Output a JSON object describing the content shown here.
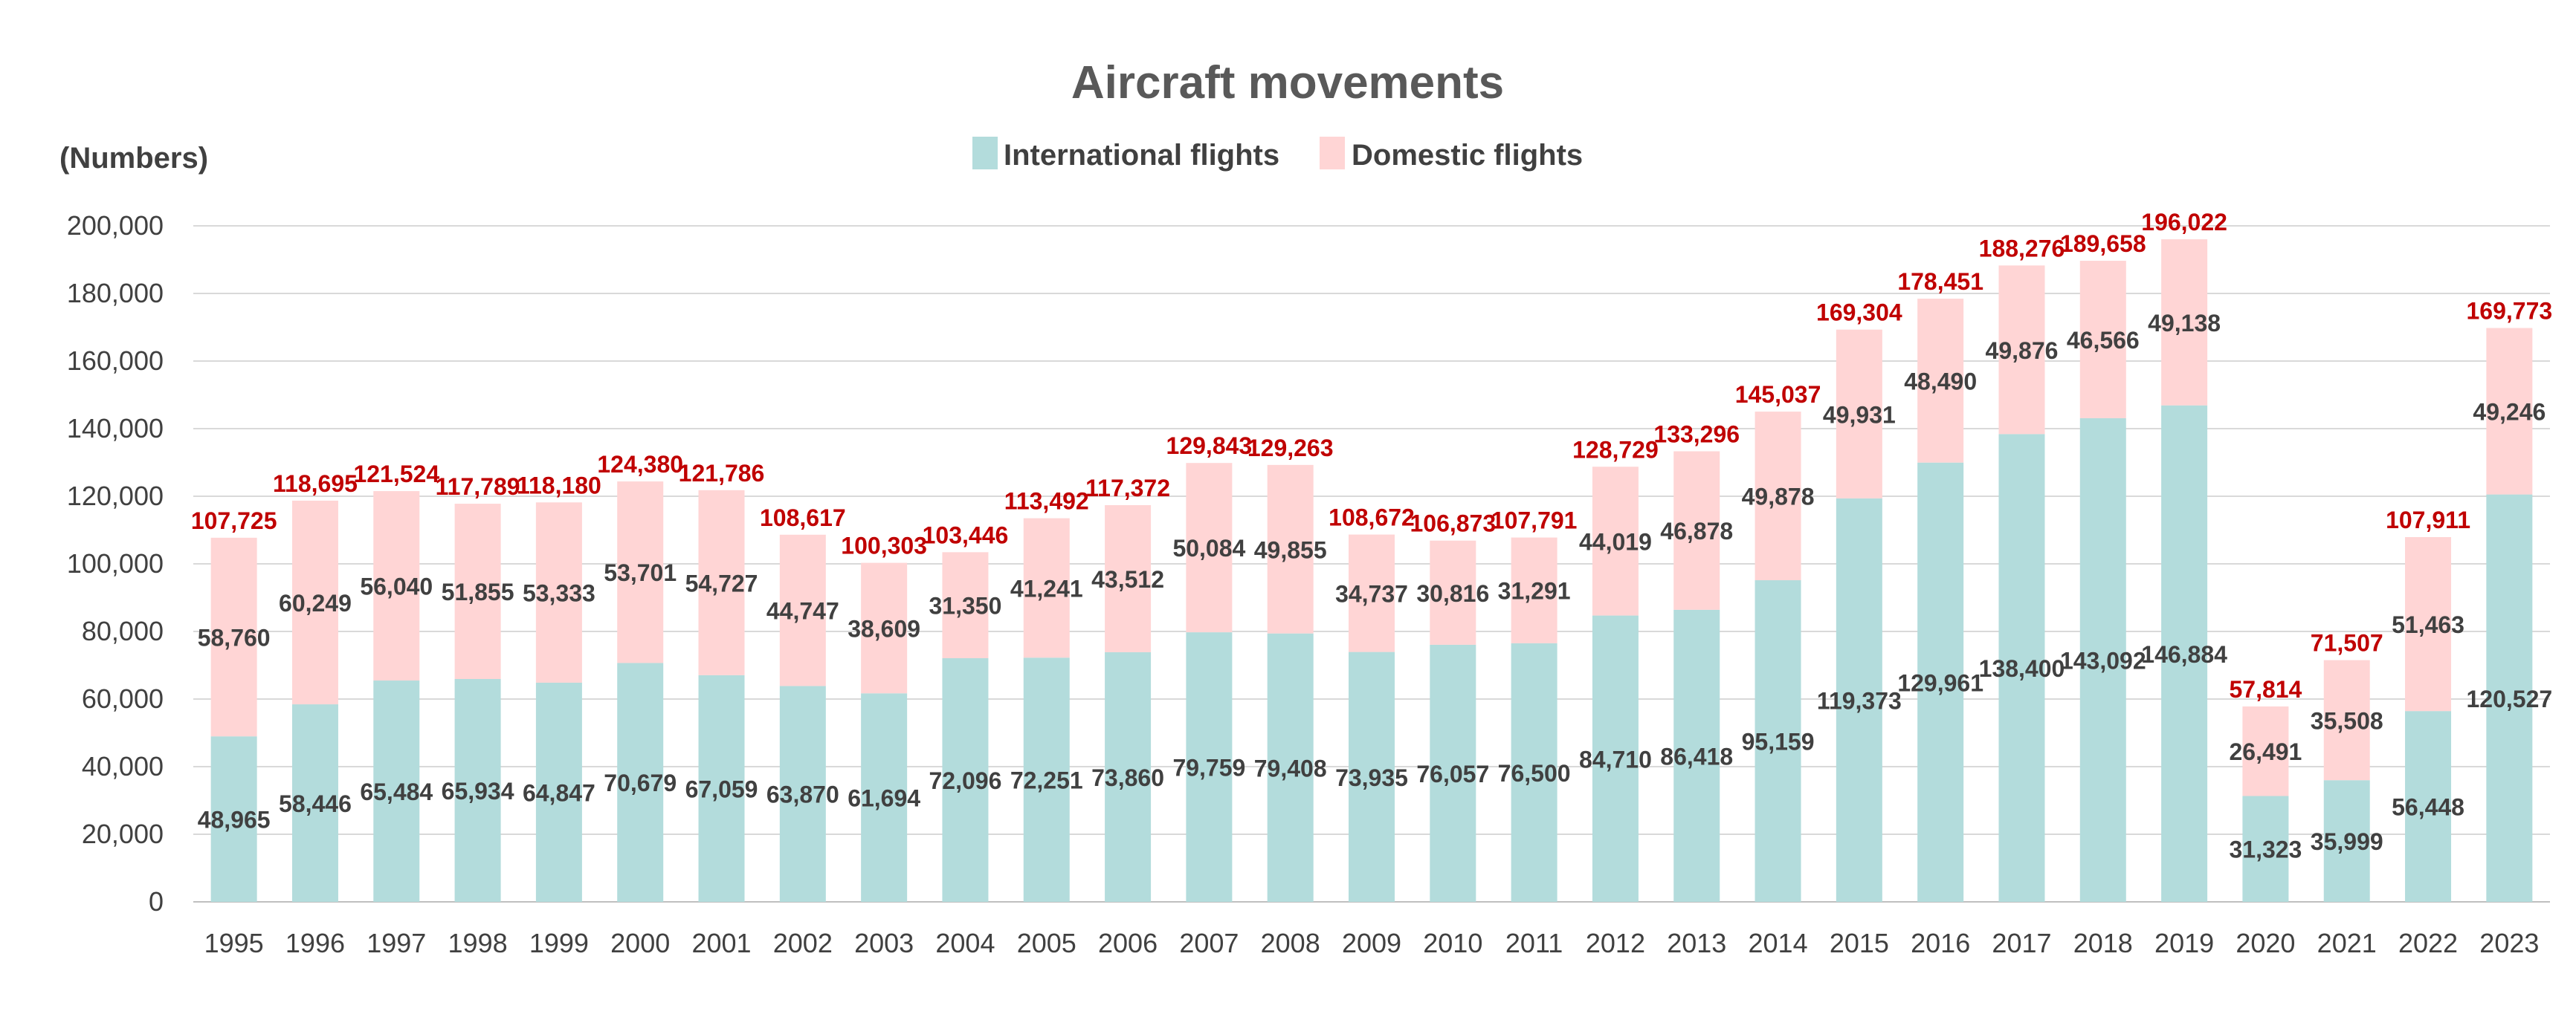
{
  "chart_data": {
    "type": "bar",
    "stacked": true,
    "title": "Aircraft movements",
    "ylabel": "(Numbers)",
    "xlabel": "",
    "ylim": [
      0,
      200000
    ],
    "yticks": [
      0,
      20000,
      40000,
      60000,
      80000,
      100000,
      120000,
      140000,
      160000,
      180000,
      200000
    ],
    "ytick_labels": [
      "0",
      "20,000",
      "40,000",
      "60,000",
      "80,000",
      "100,000",
      "120,000",
      "140,000",
      "160,000",
      "180,000",
      "200,000"
    ],
    "grid": true,
    "legend_position": "top-center",
    "categories": [
      "1995",
      "1996",
      "1997",
      "1998",
      "1999",
      "2000",
      "2001",
      "2002",
      "2003",
      "2004",
      "2005",
      "2006",
      "2007",
      "2008",
      "2009",
      "2010",
      "2011",
      "2012",
      "2013",
      "2014",
      "2015",
      "2016",
      "2017",
      "2018",
      "2019",
      "2020",
      "2021",
      "2022",
      "2023"
    ],
    "series": [
      {
        "name": "International flights",
        "color": "#b3dcdc",
        "values": [
          48965,
          58446,
          65484,
          65934,
          64847,
          70679,
          67059,
          63870,
          61694,
          72096,
          72251,
          73860,
          79759,
          79408,
          73935,
          76057,
          76500,
          84710,
          86418,
          95159,
          119373,
          129961,
          138400,
          143092,
          146884,
          31323,
          35999,
          56448,
          120527
        ],
        "labels": [
          "48,965",
          "58,446",
          "65,484",
          "65,934",
          "64,847",
          "70,679",
          "67,059",
          "63,870",
          "61,694",
          "72,096",
          "72,251",
          "73,860",
          "79,759",
          "79,408",
          "73,935",
          "76,057",
          "76,500",
          "84,710",
          "86,418",
          "95,159",
          "119,373",
          "129,961",
          "138,400",
          "143,092",
          "146,884",
          "31,323",
          "35,999",
          "56,448",
          "120,527"
        ]
      },
      {
        "name": "Domestic flights",
        "color": "#ffd5d5",
        "values": [
          58760,
          60249,
          56040,
          51855,
          53333,
          53701,
          54727,
          44747,
          38609,
          31350,
          41241,
          43512,
          50084,
          49855,
          34737,
          30816,
          31291,
          44019,
          46878,
          49878,
          49931,
          48490,
          49876,
          46566,
          49138,
          26491,
          35508,
          51463,
          49246
        ],
        "labels": [
          "58,760",
          "60,249",
          "56,040",
          "51,855",
          "53,333",
          "53,701",
          "54,727",
          "44,747",
          "38,609",
          "31,350",
          "41,241",
          "43,512",
          "50,084",
          "49,855",
          "34,737",
          "30,816",
          "31,291",
          "44,019",
          "46,878",
          "49,878",
          "49,931",
          "48,490",
          "49,876",
          "46,566",
          "49,138",
          "26,491",
          "35,508",
          "51,463",
          "49,246"
        ]
      }
    ],
    "totals": [
      107725,
      118695,
      121524,
      117789,
      118180,
      124380,
      121786,
      108617,
      100303,
      103446,
      113492,
      117372,
      129843,
      129263,
      108672,
      106873,
      107791,
      128729,
      133296,
      145037,
      169304,
      178451,
      188276,
      189658,
      196022,
      57814,
      71507,
      107911,
      169773
    ],
    "total_labels": [
      "107,725",
      "118,695",
      "121,524",
      "117,789",
      "118,180",
      "124,380",
      "121,786",
      "108,617",
      "100,303",
      "103,446",
      "113,492",
      "117,372",
      "129,843",
      "129,263",
      "108,672",
      "106,873",
      "107,791",
      "128,729",
      "133,296",
      "145,037",
      "169,304",
      "178,451",
      "188,276",
      "189,658",
      "196,022",
      "57,814",
      "71,507",
      "107,911",
      "169,773"
    ],
    "total_color": "#c00000"
  }
}
